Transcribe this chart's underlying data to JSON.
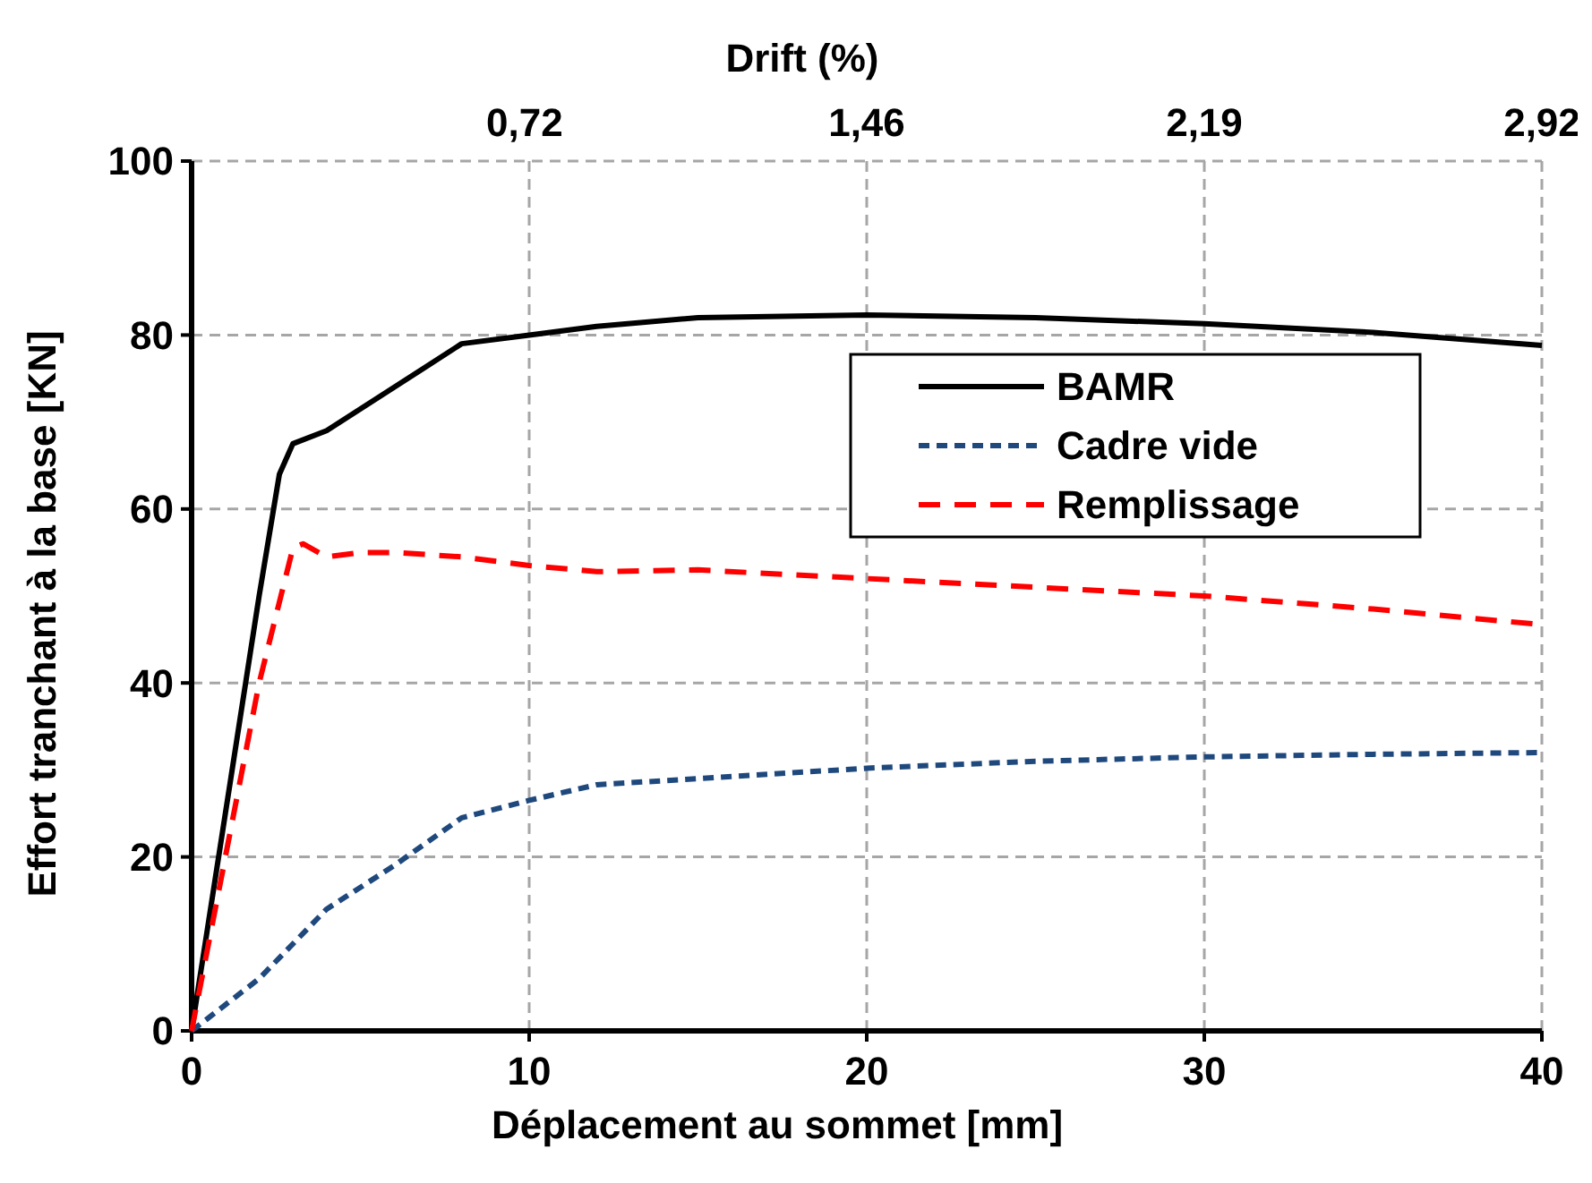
{
  "chart_data": {
    "type": "line",
    "xlabel": "Déplacement au sommet  [mm]",
    "ylabel": "Effort tranchant à la base [KN]",
    "x2label": "Drift (%)",
    "xlim": [
      0,
      40
    ],
    "xticks": [
      0,
      10,
      20,
      30,
      40
    ],
    "ylim": [
      0,
      100
    ],
    "yticks": [
      0,
      20,
      40,
      60,
      80,
      100
    ],
    "x2lim": [
      0,
      2.92
    ],
    "x2ticks": [
      {
        "value": 0.72,
        "label": "0,72"
      },
      {
        "value": 1.46,
        "label": "1,46"
      },
      {
        "value": 2.19,
        "label": "2,19"
      },
      {
        "value": 2.92,
        "label": "2,92"
      }
    ],
    "grid": true,
    "legend": "top right",
    "marker": "none",
    "series": [
      {
        "name": "BAMR",
        "color": "#000000",
        "line_style": "solid",
        "x": [
          0,
          1,
          2,
          2.6,
          3,
          4,
          5,
          6,
          7,
          8,
          10,
          12,
          15,
          20,
          25,
          30,
          35,
          40
        ],
        "values": [
          0,
          25,
          50,
          64,
          67.5,
          69,
          71.5,
          74,
          76.5,
          79,
          80,
          81,
          82,
          82.3,
          82,
          81.3,
          80.3,
          78.8
        ]
      },
      {
        "name": "Cadre vide",
        "color": "#1f497d",
        "line_style": "dashed",
        "x": [
          0,
          2,
          4,
          6,
          8,
          10,
          12,
          15,
          20,
          25,
          30,
          35,
          40
        ],
        "values": [
          0,
          6,
          14,
          19,
          24.5,
          26.5,
          28.3,
          29,
          30.2,
          31,
          31.5,
          31.8,
          32
        ]
      },
      {
        "name": "Remplissage",
        "color": "#ff0000",
        "line_style": "dashed",
        "x": [
          0,
          1,
          2,
          3,
          3.3,
          4,
          5,
          6,
          8,
          10,
          12,
          15,
          20,
          25,
          30,
          35,
          40
        ],
        "values": [
          0,
          20,
          40,
          55.5,
          56,
          54.5,
          55,
          55,
          54.5,
          53.5,
          52.8,
          53,
          52,
          51,
          50,
          48.5,
          46.7
        ]
      }
    ]
  }
}
